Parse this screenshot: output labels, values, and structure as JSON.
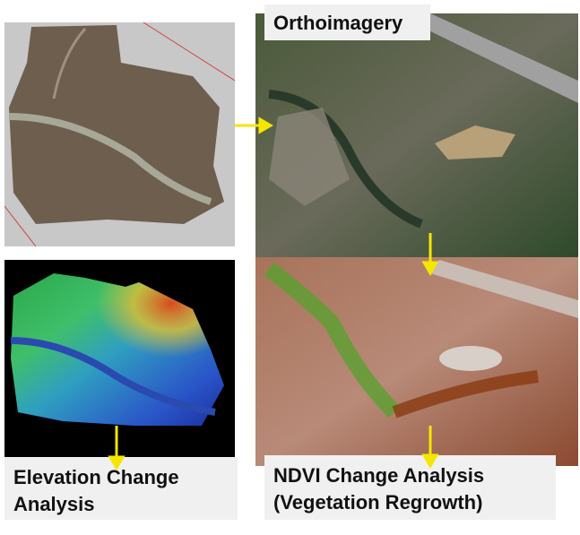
{
  "panels": {
    "orthoimagery": {
      "label": "Orthoimagery"
    },
    "elevation": {
      "label_lines": [
        "Elevation Change",
        "Analysis"
      ]
    },
    "ndvi": {
      "label_lines": [
        "NDVI Change Analysis",
        "(Vegetation Regrowth)"
      ]
    }
  }
}
